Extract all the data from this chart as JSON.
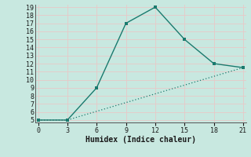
{
  "xlabel": "Humidex (Indice chaleur)",
  "line1_x": [
    0,
    3,
    6,
    9,
    12,
    15,
    18,
    21
  ],
  "line1_y": [
    5,
    5,
    9,
    17,
    19,
    15,
    12,
    11.5
  ],
  "line2_x": [
    0,
    3,
    21
  ],
  "line2_y": [
    5,
    5,
    11.5
  ],
  "xlim": [
    -0.3,
    21.3
  ],
  "ylim": [
    4.7,
    19.3
  ],
  "xticks": [
    0,
    3,
    6,
    9,
    12,
    15,
    18,
    21
  ],
  "yticks": [
    5,
    6,
    7,
    8,
    9,
    10,
    11,
    12,
    13,
    14,
    15,
    16,
    17,
    18,
    19
  ],
  "line_color": "#1a7a6e",
  "bg_color": "#c8e8e0",
  "grid_color": "#e8c8c8",
  "plot_bg": "#c8e8e0"
}
